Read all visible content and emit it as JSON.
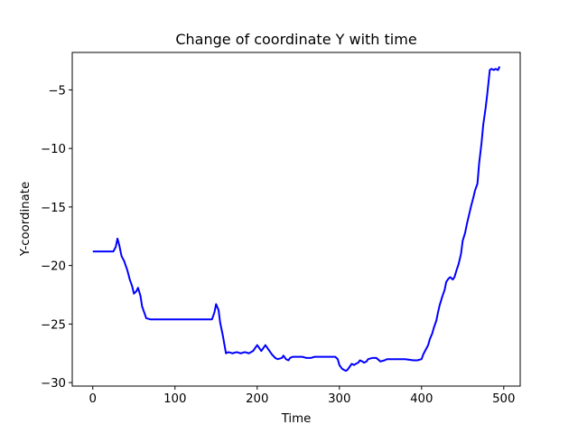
{
  "chart_data": {
    "type": "line",
    "title": "Change of coordinate Y with time",
    "xlabel": "Time",
    "ylabel": "Y-coordinate",
    "xlim": [
      -25,
      520
    ],
    "ylim": [
      -30.3,
      -1.8
    ],
    "xticks": [
      0,
      100,
      200,
      300,
      400,
      500
    ],
    "yticks": [
      -5,
      -10,
      -15,
      -20,
      -25,
      -30
    ],
    "grid": false,
    "series": [
      {
        "color": "#0000ff",
        "x": [
          0,
          10,
          20,
          25,
          28,
          30,
          32,
          35,
          38,
          42,
          45,
          48,
          50,
          53,
          55,
          58,
          60,
          63,
          65,
          70,
          80,
          90,
          100,
          110,
          120,
          130,
          140,
          145,
          148,
          150,
          153,
          155,
          158,
          162,
          165,
          170,
          175,
          180,
          185,
          190,
          195,
          200,
          203,
          205,
          208,
          210,
          213,
          215,
          218,
          222,
          225,
          230,
          232,
          235,
          238,
          240,
          243,
          245,
          250,
          255,
          260,
          265,
          270,
          275,
          280,
          285,
          290,
          295,
          298,
          300,
          303,
          305,
          308,
          310,
          313,
          315,
          318,
          320,
          323,
          325,
          328,
          330,
          333,
          335,
          340,
          345,
          350,
          355,
          358,
          360,
          365,
          370,
          380,
          390,
          395,
          400,
          402,
          405,
          408,
          410,
          413,
          415,
          418,
          420,
          422,
          425,
          428,
          430,
          433,
          435,
          438,
          440,
          443,
          445,
          448,
          450,
          453,
          455,
          458,
          460,
          463,
          465,
          468,
          470,
          473,
          475,
          478,
          480,
          483,
          485,
          488,
          490,
          493,
          495
        ],
        "y": [
          -18.8,
          -18.8,
          -18.8,
          -18.8,
          -18.4,
          -17.7,
          -18.2,
          -19.2,
          -19.6,
          -20.4,
          -21.2,
          -21.8,
          -22.4,
          -22.2,
          -21.9,
          -22.6,
          -23.5,
          -24.1,
          -24.5,
          -24.6,
          -24.6,
          -24.6,
          -24.6,
          -24.6,
          -24.6,
          -24.6,
          -24.6,
          -24.6,
          -24.0,
          -23.3,
          -23.8,
          -24.9,
          -25.9,
          -27.5,
          -27.4,
          -27.5,
          -27.4,
          -27.5,
          -27.4,
          -27.5,
          -27.3,
          -26.8,
          -27.1,
          -27.3,
          -27.0,
          -26.8,
          -27.1,
          -27.3,
          -27.6,
          -27.9,
          -28.0,
          -27.9,
          -27.7,
          -28.0,
          -28.1,
          -27.9,
          -27.8,
          -27.8,
          -27.8,
          -27.8,
          -27.9,
          -27.9,
          -27.8,
          -27.8,
          -27.8,
          -27.8,
          -27.8,
          -27.8,
          -28.0,
          -28.5,
          -28.8,
          -28.9,
          -29.0,
          -28.9,
          -28.6,
          -28.4,
          -28.5,
          -28.4,
          -28.3,
          -28.1,
          -28.2,
          -28.3,
          -28.2,
          -28.0,
          -27.9,
          -27.9,
          -28.2,
          -28.1,
          -28.0,
          -28.0,
          -28.0,
          -28.0,
          -28.0,
          -28.1,
          -28.1,
          -28.0,
          -27.6,
          -27.2,
          -26.8,
          -26.3,
          -25.8,
          -25.3,
          -24.7,
          -24.0,
          -23.4,
          -22.7,
          -22.1,
          -21.4,
          -21.1,
          -21.0,
          -21.2,
          -21.0,
          -20.3,
          -19.9,
          -19.0,
          -17.9,
          -17.2,
          -16.5,
          -15.6,
          -15.0,
          -14.2,
          -13.6,
          -13.0,
          -11.3,
          -9.5,
          -8.0,
          -6.5,
          -5.3,
          -3.3,
          -3.2,
          -3.3,
          -3.2,
          -3.3,
          -3.0
        ]
      }
    ]
  }
}
